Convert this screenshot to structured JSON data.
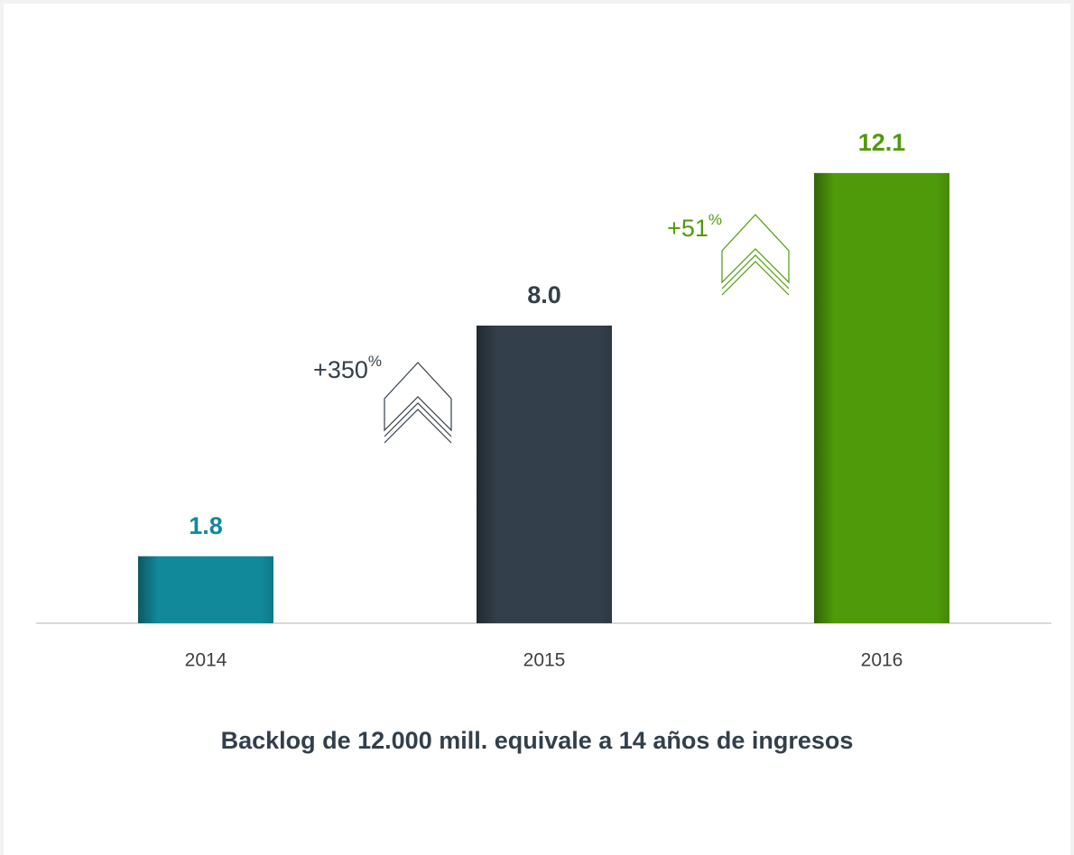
{
  "chart_data": {
    "type": "bar",
    "categories": [
      "2014",
      "2015",
      "2016"
    ],
    "values": [
      1.8,
      8.0,
      12.1
    ],
    "value_labels": [
      "1.8",
      "8.0",
      "12.1"
    ],
    "colors": [
      "#12899a",
      "#333f4a",
      "#4f9a0a"
    ],
    "annotations": [
      {
        "text": "+350",
        "superscript": "%",
        "color": "#333f4a"
      },
      {
        "text": "+51",
        "superscript": "%",
        "color": "#4f9a0a"
      }
    ],
    "footnote": "Backlog de 12.000 mill. equivale a 14 años de ingresos"
  }
}
